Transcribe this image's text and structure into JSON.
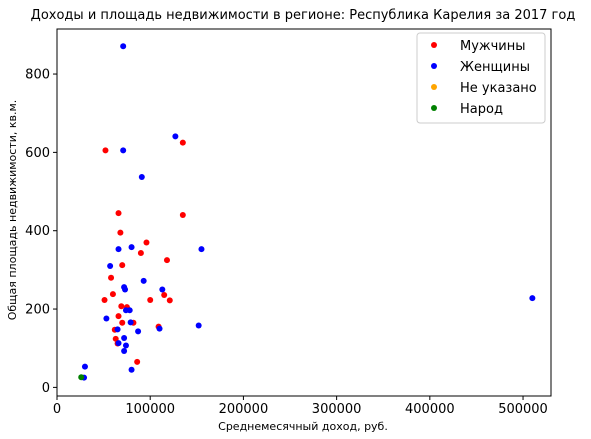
{
  "chart_data": {
    "type": "scatter",
    "title": "Доходы и площадь недвижимости в регионе: Республика Карелия за 2017 год",
    "xlabel": "Среднемесячный доход, руб.",
    "ylabel": "Общая площадь недвижимости, кв.м.",
    "xlim": [
      0,
      530000
    ],
    "ylim": [
      -22,
      915
    ],
    "xticks": [
      0,
      100000,
      200000,
      300000,
      400000,
      500000
    ],
    "xtick_labels": [
      "0",
      "100000",
      "200000",
      "300000",
      "400000",
      "500000"
    ],
    "yticks": [
      0,
      200,
      400,
      600,
      800
    ],
    "ytick_labels": [
      "0",
      "200",
      "400",
      "600",
      "800"
    ],
    "grid": false,
    "legend_position": "top-right",
    "series": [
      {
        "name": "Мужчины",
        "color": "#ff0000",
        "points": [
          [
            52000,
            605
          ],
          [
            135000,
            625
          ],
          [
            66000,
            445
          ],
          [
            68000,
            395
          ],
          [
            135000,
            440
          ],
          [
            96000,
            370
          ],
          [
            90000,
            343
          ],
          [
            58000,
            280
          ],
          [
            70000,
            312
          ],
          [
            118000,
            325
          ],
          [
            60000,
            238
          ],
          [
            51000,
            223
          ],
          [
            100000,
            223
          ],
          [
            115000,
            236
          ],
          [
            121000,
            222
          ],
          [
            75000,
            205
          ],
          [
            69000,
            207
          ],
          [
            66000,
            182
          ],
          [
            70000,
            165
          ],
          [
            82000,
            165
          ],
          [
            62000,
            147
          ],
          [
            109000,
            155
          ],
          [
            63000,
            124
          ],
          [
            65000,
            112
          ],
          [
            86000,
            65
          ]
        ]
      },
      {
        "name": "Женщины",
        "color": "#0000ff",
        "points": [
          [
            71000,
            871
          ],
          [
            127000,
            641
          ],
          [
            71000,
            605
          ],
          [
            91000,
            537
          ],
          [
            66000,
            353
          ],
          [
            80000,
            358
          ],
          [
            155000,
            353
          ],
          [
            57000,
            310
          ],
          [
            93000,
            272
          ],
          [
            72000,
            256
          ],
          [
            73000,
            250
          ],
          [
            113000,
            250
          ],
          [
            74000,
            197
          ],
          [
            78000,
            197
          ],
          [
            510000,
            228
          ],
          [
            53000,
            176
          ],
          [
            79000,
            166
          ],
          [
            152000,
            158
          ],
          [
            110000,
            150
          ],
          [
            65000,
            148
          ],
          [
            72000,
            126
          ],
          [
            87000,
            143
          ],
          [
            66000,
            113
          ],
          [
            74000,
            107
          ],
          [
            72000,
            93
          ],
          [
            30000,
            53
          ],
          [
            80000,
            45
          ],
          [
            29000,
            25
          ]
        ]
      },
      {
        "name": "Не указано",
        "color": "#ffa500",
        "points": []
      },
      {
        "name": "Народ",
        "color": "#008000",
        "points": [
          [
            26000,
            26
          ]
        ]
      }
    ]
  }
}
